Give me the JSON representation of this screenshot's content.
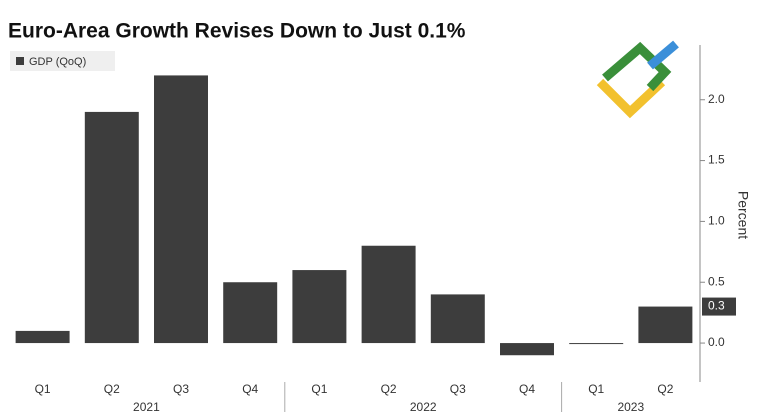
{
  "chart_data": {
    "type": "bar",
    "title": "Euro-Area Growth Revises Down to Just 0.1%",
    "legend": "GDP (QoQ)",
    "y_label": "Percent",
    "categories": [
      "Q1",
      "Q2",
      "Q3",
      "Q4",
      "Q1",
      "Q2",
      "Q3",
      "Q4",
      "Q1",
      "Q2"
    ],
    "years": [
      "2021",
      "2022",
      "2023"
    ],
    "values": [
      0.1,
      1.9,
      2.2,
      0.5,
      0.6,
      0.8,
      0.4,
      -0.1,
      0.0,
      0.3
    ],
    "color": "#3d3d3d",
    "ylim": [
      -0.32,
      2.45
    ],
    "yticks": [
      {
        "value": 0,
        "label": "0.0"
      },
      0.5,
      {
        "value": 1,
        "label": "1.0"
      },
      1.5,
      {
        "value": 2,
        "label": "2.0"
      }
    ],
    "grid": false
  }
}
